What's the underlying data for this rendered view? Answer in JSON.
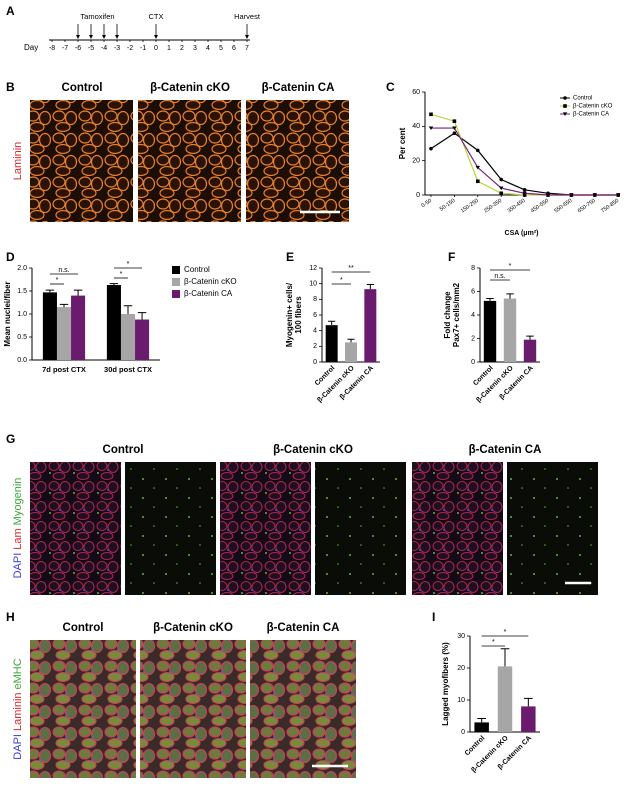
{
  "panel_labels": [
    "A",
    "B",
    "C",
    "D",
    "E",
    "F",
    "G",
    "H",
    "I"
  ],
  "timeline": {
    "axis_label": "Day",
    "days": [
      -8,
      -7,
      -6,
      -5,
      -4,
      -3,
      -2,
      -1,
      0,
      1,
      2,
      3,
      4,
      5,
      6,
      7
    ],
    "events": [
      {
        "label": "Tamoxifen",
        "days": [
          -6,
          -5,
          -4,
          -3
        ]
      },
      {
        "label": "CTX",
        "days": [
          0
        ]
      },
      {
        "label": "Harvest",
        "days": [
          7
        ]
      }
    ]
  },
  "panel_b": {
    "columns": [
      "Control",
      "β-Catenin cKO",
      "β-Catenin CA"
    ],
    "stain": "Laminin"
  },
  "panel_g": {
    "columns": [
      "Control",
      "β-Catenin cKO",
      "β-Catenin CA"
    ],
    "stains": [
      "DAPI",
      "Lam",
      "Myogenin"
    ]
  },
  "panel_h": {
    "columns": [
      "Control",
      "β-Catenin cKO",
      "β-Catenin CA"
    ],
    "stains": [
      "DAPI",
      "Laminin",
      "eMHC"
    ]
  },
  "chart_data": [
    {
      "type": "line",
      "ylabel": "Per cent",
      "xlabel": "CSA (μm²)",
      "categories": [
        "0-50",
        "50-150",
        "150-250",
        "250-350",
        "350-450",
        "450-550",
        "550-650",
        "650-750",
        "750-850"
      ],
      "ylim": [
        0,
        60
      ],
      "yticks": [
        0,
        20,
        40,
        60
      ],
      "legend": "upper right",
      "marker_color": "#000000",
      "series": [
        {
          "name": "Control",
          "color": "#000000",
          "marker": "circle",
          "values": [
            27,
            36,
            26,
            9,
            3,
            1,
            0,
            0,
            0
          ]
        },
        {
          "name": "β-Catenin cKO",
          "color": "#b8d63c",
          "marker": "square",
          "values": [
            47,
            43,
            8,
            1,
            0,
            0,
            0,
            0,
            0
          ]
        },
        {
          "name": "β-Catenin CA",
          "color": "#7a1f7a",
          "marker": "triangle",
          "values": [
            39,
            39,
            16,
            4,
            1,
            0,
            0,
            0,
            0
          ]
        }
      ]
    },
    {
      "type": "grouped_bar",
      "ylabel": "Mean nuclei/fiber",
      "categories": [
        "7d post CTX",
        "30d post CTX"
      ],
      "ylim": [
        0,
        2
      ],
      "yticks": [
        {
          "value": 0,
          "label": "0.0"
        },
        {
          "value": 0.5,
          "label": "0.5"
        },
        {
          "value": 1,
          "label": "1.0"
        },
        {
          "value": 1.5,
          "label": "1.5"
        },
        {
          "value": 2,
          "label": "2.0"
        }
      ],
      "legend": "right",
      "series": [
        {
          "name": "Control",
          "color": "#000000",
          "values": [
            1.47,
            1.63
          ],
          "errors": [
            0.05,
            0.03
          ]
        },
        {
          "name": "β-Catenin cKO",
          "color": "#a6a6a6",
          "values": [
            1.15,
            1.0
          ],
          "errors": [
            0.06,
            0.18
          ]
        },
        {
          "name": "β-Catenin CA",
          "color": "#6a1b6e",
          "values": [
            1.4,
            0.88
          ],
          "errors": [
            0.12,
            0.15
          ]
        }
      ],
      "annotations": [
        "n.s.",
        "*",
        "*",
        "*"
      ]
    },
    {
      "type": "bar",
      "ylabel": [
        "Myogenin+ cells/",
        "100 fibers"
      ],
      "categories": [
        "Control",
        "β-Catenin cKO",
        "β-Catenin CA"
      ],
      "values": [
        4.7,
        2.5,
        9.3
      ],
      "errors": [
        0.5,
        0.4,
        0.6
      ],
      "colors": [
        "#000000",
        "#a6a6a6",
        "#6a1b6e"
      ],
      "ylim": [
        0,
        12
      ],
      "yticks": [
        0,
        2,
        4,
        6,
        8,
        10,
        12
      ],
      "annotations": [
        "*",
        "**"
      ]
    },
    {
      "type": "bar",
      "ylabel": [
        "Fold change",
        "Pax7+ cells/mm2"
      ],
      "categories": [
        "Control",
        "β-Catenin cKO",
        "β-Catenin CA"
      ],
      "values": [
        5.2,
        5.4,
        1.9
      ],
      "errors": [
        0.2,
        0.4,
        0.3
      ],
      "colors": [
        "#000000",
        "#a6a6a6",
        "#6a1b6e"
      ],
      "ylim": [
        0,
        8
      ],
      "yticks": [
        0,
        2,
        4,
        6,
        8
      ],
      "annotations": [
        "n.s.",
        "*"
      ]
    },
    {
      "type": "bar",
      "ylabel": "Lagged myofibers (%)",
      "categories": [
        "Control",
        "β-Catenin cKO",
        "β-Catenin CA"
      ],
      "values": [
        3,
        20.5,
        8
      ],
      "errors": [
        1.2,
        5.5,
        2.5
      ],
      "colors": [
        "#000000",
        "#a6a6a6",
        "#6a1b6e"
      ],
      "ylim": [
        0,
        30
      ],
      "yticks": [
        0,
        10,
        20,
        30
      ],
      "annotations": [
        "*",
        "*"
      ]
    }
  ]
}
